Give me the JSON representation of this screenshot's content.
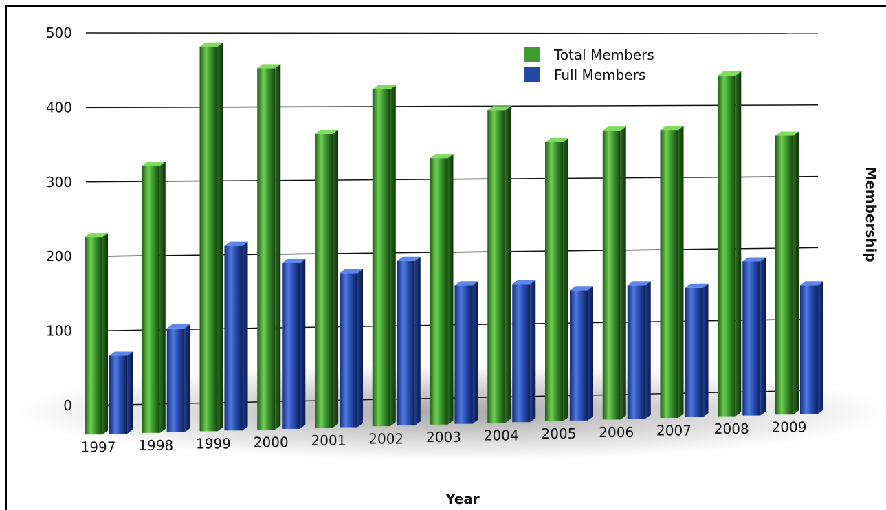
{
  "chart_data": {
    "type": "bar",
    "xlabel": "Year",
    "ylabel": "Membership",
    "ylim": [
      0,
      500
    ],
    "yticks": [
      "0",
      "100",
      "200",
      "300",
      "400",
      "500"
    ],
    "categories": [
      "1997",
      "1998",
      "1999",
      "2000",
      "2001",
      "2002",
      "2003",
      "2004",
      "2005",
      "2006",
      "2007",
      "2008",
      "2009"
    ],
    "legend_position": "top-right",
    "series": [
      {
        "name": "Total Members",
        "color": "#3f9a34",
        "values": [
          265,
          360,
          520,
          490,
          400,
          460,
          365,
          430,
          385,
          400,
          400,
          475,
          390
        ]
      },
      {
        "name": "Full Members",
        "color": "#2448a8",
        "values": [
          105,
          140,
          250,
          225,
          210,
          225,
          190,
          190,
          180,
          185,
          180,
          215,
          180
        ]
      }
    ],
    "grid": true
  }
}
